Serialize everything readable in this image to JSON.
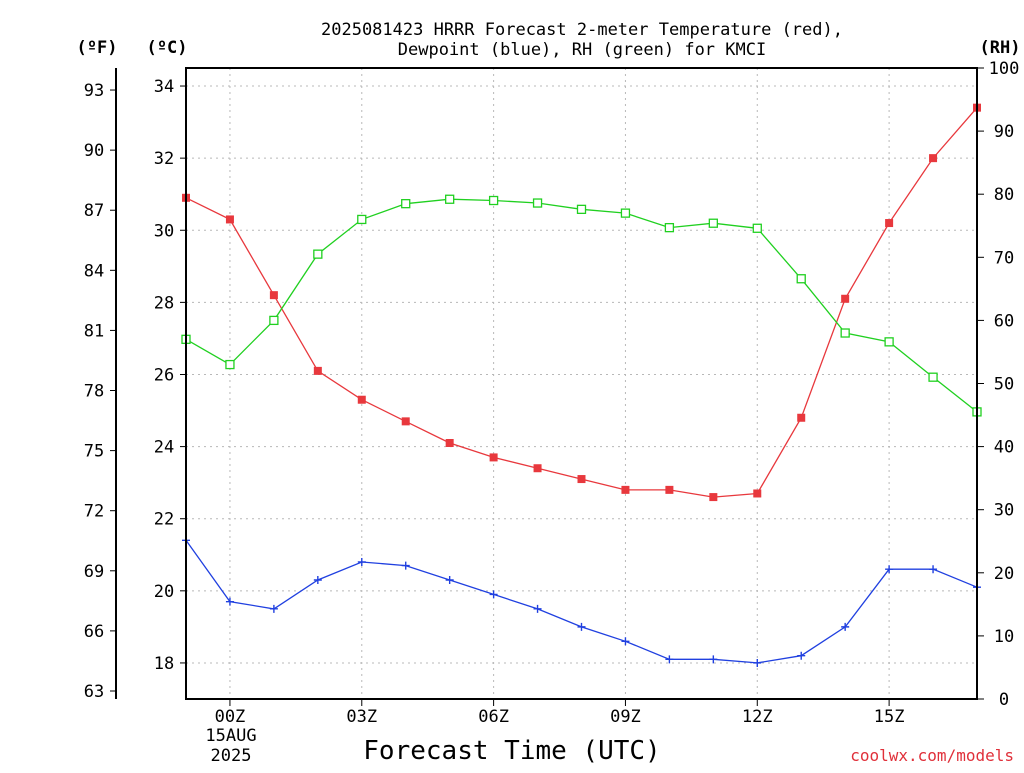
{
  "chart_data": {
    "type": "line",
    "title_line1": "2025081423 HRRR Forecast 2-meter Temperature (red),",
    "title_line2": "Dewpoint (blue), RH (green) for KMCI",
    "xlabel": "Forecast Time (UTC)",
    "credit": "coolwx.com/models",
    "date_label": [
      "15AUG",
      "2025"
    ],
    "units": {
      "fahrenheit": "(ºF)",
      "celsius": "(ºC)",
      "rh": "(RH)"
    },
    "x_ticks": [
      "00Z",
      "03Z",
      "06Z",
      "09Z",
      "12Z",
      "15Z"
    ],
    "x_tick_hours": [
      0,
      3,
      6,
      9,
      12,
      15
    ],
    "xlim": [
      -1,
      17
    ],
    "celsius_ticks": [
      18,
      20,
      22,
      24,
      26,
      28,
      30,
      32,
      34
    ],
    "fahrenheit_ticks": [
      63,
      66,
      69,
      72,
      75,
      78,
      81,
      84,
      87,
      90,
      93
    ],
    "rh_ticks": [
      0,
      10,
      20,
      30,
      40,
      50,
      60,
      70,
      80,
      90,
      100
    ],
    "ylim_celsius": [
      17.0,
      34.5
    ],
    "ylim_rh": [
      0,
      100
    ],
    "hours": [
      -1,
      0,
      1,
      2,
      3,
      4,
      5,
      6,
      7,
      8,
      9,
      10,
      11,
      12,
      13,
      14,
      15,
      16,
      17
    ],
    "series": [
      {
        "name": "Temperature",
        "axis": "celsius",
        "color": "#e8383d",
        "marker": "filled-square",
        "values": [
          30.9,
          30.3,
          28.2,
          26.1,
          25.3,
          24.7,
          24.1,
          23.7,
          23.4,
          23.1,
          22.8,
          22.8,
          22.6,
          22.7,
          24.8,
          28.1,
          30.2,
          32.0,
          33.4
        ]
      },
      {
        "name": "Dewpoint",
        "axis": "celsius",
        "color": "#2040e0",
        "marker": "plus",
        "values": [
          21.4,
          19.7,
          19.5,
          20.3,
          20.8,
          20.7,
          20.3,
          19.9,
          19.5,
          19.0,
          18.6,
          18.1,
          18.1,
          18.0,
          18.2,
          19.0,
          20.6,
          20.6,
          20.1
        ]
      },
      {
        "name": "RH",
        "axis": "rh",
        "color": "#20d020",
        "marker": "open-square",
        "values": [
          57.0,
          53.0,
          60.0,
          70.5,
          76.0,
          78.5,
          79.2,
          79.0,
          78.6,
          77.6,
          77.0,
          74.7,
          75.4,
          74.6,
          66.6,
          58.0,
          56.6,
          51.0,
          45.5
        ]
      }
    ]
  }
}
